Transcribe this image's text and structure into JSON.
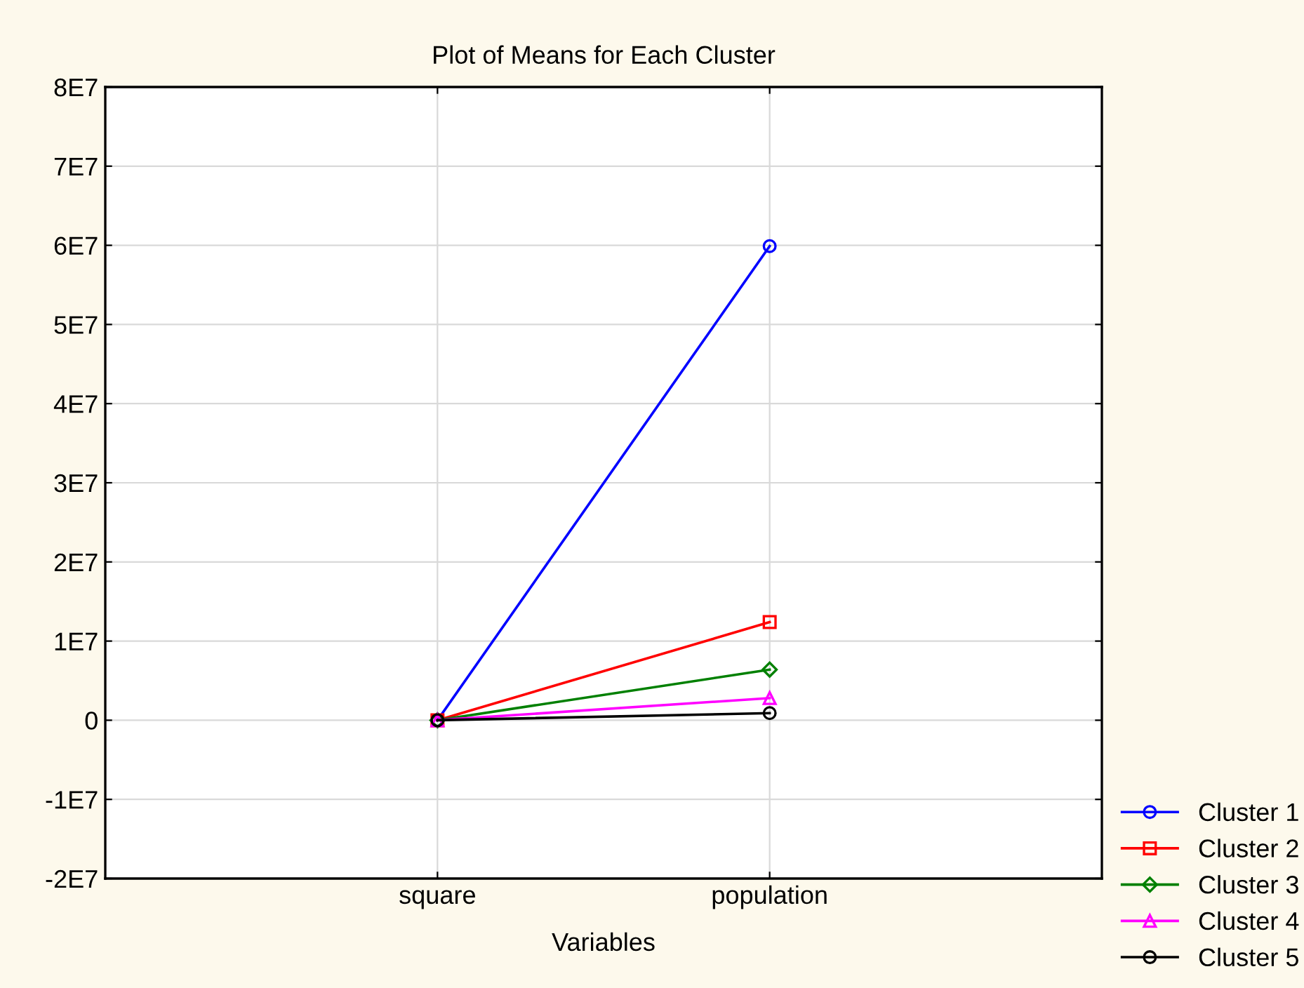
{
  "chart_data": {
    "type": "line",
    "title": "Plot of Means for Each Cluster",
    "xlabel": "Variables",
    "categories": [
      "square",
      "population"
    ],
    "series": [
      {
        "name": "Cluster 1",
        "color": "#0000ff",
        "marker": "circle",
        "values": [
          0,
          59900000
        ]
      },
      {
        "name": "Cluster 2",
        "color": "#ff0000",
        "marker": "square",
        "values": [
          0,
          12400000
        ]
      },
      {
        "name": "Cluster 3",
        "color": "#008000",
        "marker": "diamond",
        "values": [
          0,
          6400000
        ]
      },
      {
        "name": "Cluster 4",
        "color": "#ff00ff",
        "marker": "triangle",
        "values": [
          0,
          2800000
        ]
      },
      {
        "name": "Cluster 5",
        "color": "#000000",
        "marker": "circle",
        "values": [
          0,
          900000
        ]
      }
    ],
    "ylim": [
      -20000000,
      80000000
    ],
    "yticks": [
      {
        "value": -20000000,
        "label": "-2E7"
      },
      {
        "value": -10000000,
        "label": "-1E7"
      },
      0,
      {
        "value": 10000000,
        "label": "1E7"
      },
      {
        "value": 20000000,
        "label": "2E7"
      },
      {
        "value": 30000000,
        "label": "3E7"
      },
      {
        "value": 40000000,
        "label": "4E7"
      },
      {
        "value": 50000000,
        "label": "5E7"
      },
      {
        "value": 60000000,
        "label": "6E7"
      },
      {
        "value": 70000000,
        "label": "7E7"
      },
      {
        "value": 80000000,
        "label": "8E7"
      }
    ],
    "grid": true,
    "legend": "bottom right",
    "line_style": "solid"
  }
}
